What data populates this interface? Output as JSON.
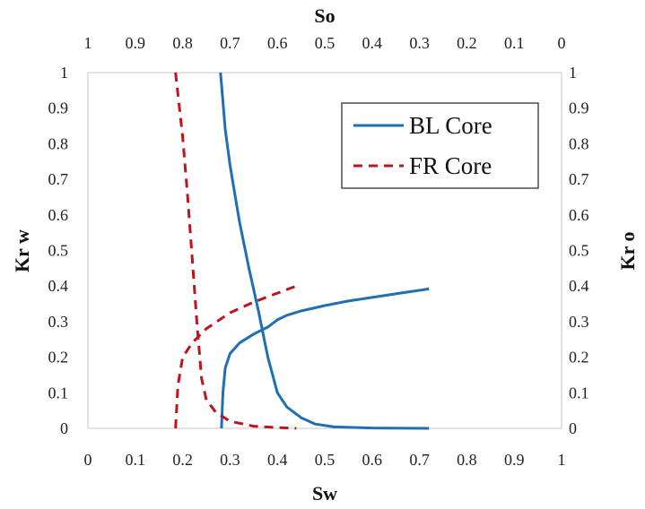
{
  "chart_data": {
    "type": "line",
    "title": "",
    "xlabel": "Sw",
    "x2label": "So",
    "ylabel": "Kr w",
    "y2label": "Kr o",
    "xlim": [
      0,
      1
    ],
    "x2lim": [
      1,
      0
    ],
    "ylim": [
      0,
      1
    ],
    "y2lim": [
      0,
      1
    ],
    "grid": false,
    "legend_position": "top-right",
    "x_ticks": [
      "0",
      "0.1",
      "0.2",
      "0.3",
      "0.4",
      "0.5",
      "0.6",
      "0.7",
      "0.8",
      "0.9",
      "1"
    ],
    "x2_ticks": [
      "1",
      "0.9",
      "0.8",
      "0.7",
      "0.6",
      "0.5",
      "0.4",
      "0.3",
      "0.2",
      "0.1",
      "0"
    ],
    "y_ticks": [
      "0",
      "0.1",
      "0.2",
      "0.3",
      "0.4",
      "0.5",
      "0.6",
      "0.7",
      "0.8",
      "0.9",
      "1"
    ],
    "y2_ticks": [
      "0",
      "0.1",
      "0.2",
      "0.3",
      "0.4",
      "0.5",
      "0.6",
      "0.7",
      "0.8",
      "0.9",
      "1"
    ],
    "series": [
      {
        "name": "BL Core",
        "style": "solid",
        "color": "#1f6fb4",
        "curves": [
          {
            "x": [
              0.282,
              0.285,
              0.29,
              0.3,
              0.32,
              0.35,
              0.38,
              0.4,
              0.42,
              0.45,
              0.5,
              0.55,
              0.6,
              0.65,
              0.72
            ],
            "y": [
              0.0,
              0.1,
              0.17,
              0.21,
              0.24,
              0.265,
              0.285,
              0.305,
              0.318,
              0.33,
              0.345,
              0.358,
              0.368,
              0.378,
              0.392
            ]
          },
          {
            "x": [
              0.28,
              0.29,
              0.3,
              0.32,
              0.34,
              0.36,
              0.38,
              0.4,
              0.42,
              0.45,
              0.48,
              0.52,
              0.6,
              0.72
            ],
            "y": [
              1.0,
              0.84,
              0.74,
              0.58,
              0.45,
              0.33,
              0.2,
              0.1,
              0.06,
              0.03,
              0.012,
              0.004,
              0.001,
              0.0
            ]
          }
        ]
      },
      {
        "name": "FR Core",
        "style": "dashed",
        "color": "#c0141c",
        "curves": [
          {
            "x": [
              0.185,
              0.19,
              0.2,
              0.22,
              0.25,
              0.3,
              0.35,
              0.4,
              0.44
            ],
            "y": [
              0.0,
              0.12,
              0.2,
              0.24,
              0.28,
              0.325,
              0.355,
              0.38,
              0.4
            ]
          },
          {
            "x": [
              0.185,
              0.2,
              0.21,
              0.22,
              0.23,
              0.24,
              0.25,
              0.27,
              0.3,
              0.35,
              0.4,
              0.44
            ],
            "y": [
              1.0,
              0.82,
              0.66,
              0.48,
              0.3,
              0.14,
              0.08,
              0.045,
              0.02,
              0.006,
              0.002,
              0.0
            ]
          }
        ]
      }
    ]
  }
}
